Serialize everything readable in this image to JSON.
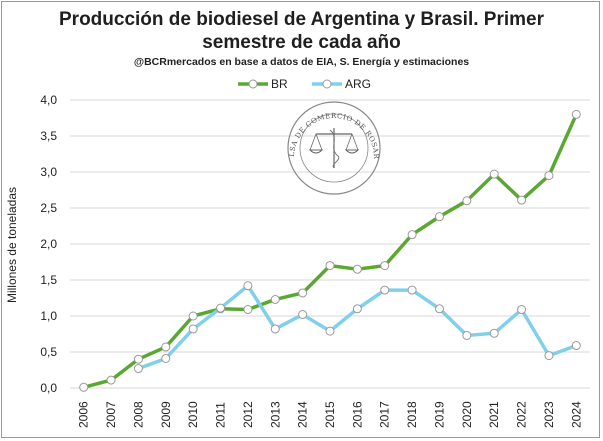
{
  "chart_data": {
    "type": "line",
    "title_line1": "Producción de biodiesel de Argentina y Brasil. Primer",
    "title_line2": "semestre de cada año",
    "subtitle": "@BCRmercados en base a datos de EIA, S. Energía y estimaciones",
    "ylabel": "Millones de toneladas",
    "xlabel": "",
    "ylim": [
      0,
      4
    ],
    "yticks": [
      "0,0",
      "0,5",
      "1,0",
      "1,5",
      "2,0",
      "2,5",
      "3,0",
      "3,5",
      "4,0"
    ],
    "grid": true,
    "legend_position": "top-center",
    "x": [
      "2006",
      "2007",
      "2008",
      "2009",
      "2010",
      "2011",
      "2012",
      "2013",
      "2014",
      "2015",
      "2016",
      "2017",
      "2018",
      "2019",
      "2020",
      "2021",
      "2022",
      "2023",
      "2024"
    ],
    "series": [
      {
        "name": "BR",
        "color": "#5aa832",
        "values": [
          0.01,
          0.11,
          0.4,
          0.57,
          1.0,
          1.1,
          1.09,
          1.23,
          1.32,
          1.7,
          1.65,
          1.7,
          2.13,
          2.38,
          2.6,
          2.97,
          2.61,
          2.95,
          3.8
        ]
      },
      {
        "name": "ARG",
        "color": "#7fd0ea",
        "values": [
          null,
          null,
          0.27,
          0.41,
          0.82,
          1.11,
          1.42,
          0.82,
          1.02,
          0.79,
          1.1,
          1.36,
          1.36,
          1.1,
          0.73,
          0.76,
          1.09,
          0.45,
          0.59
        ]
      }
    ]
  },
  "watermark": {
    "text": "BOLSA DE COMERCIO DE ROSARIO",
    "icon": "scales-of-justice-seal"
  }
}
